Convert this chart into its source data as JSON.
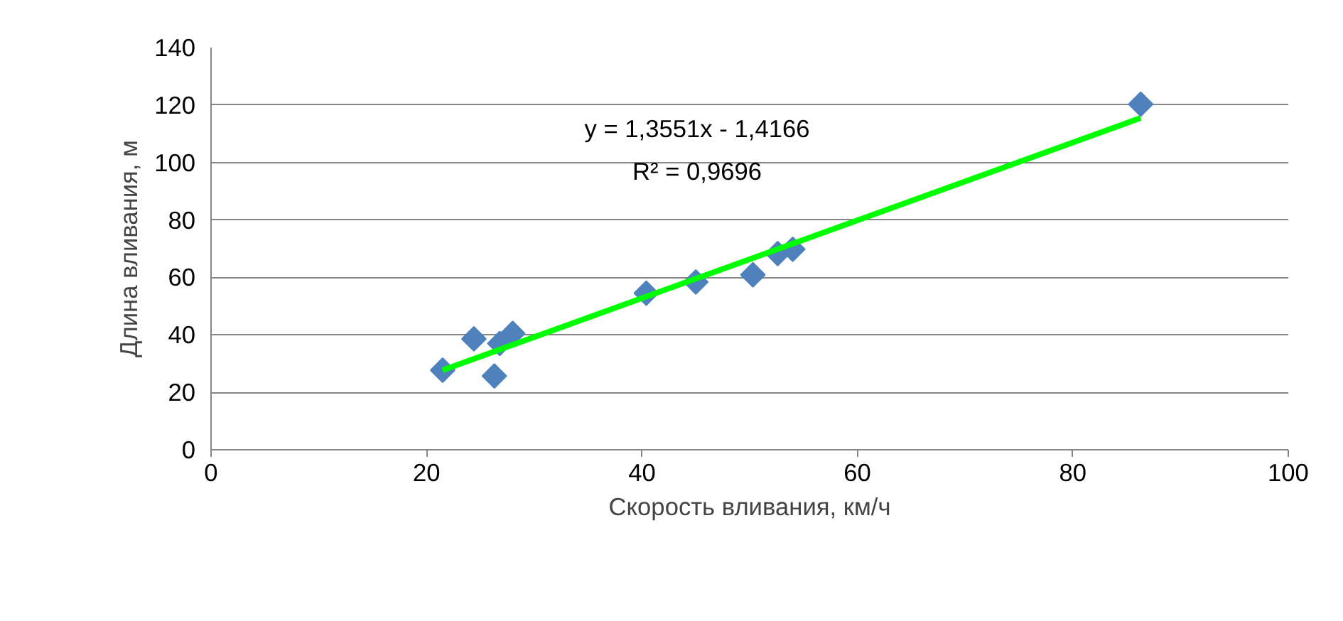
{
  "chart_data": {
    "type": "scatter",
    "xlabel": "Скорость вливания, км/ч",
    "ylabel": "Длина вливания, м",
    "xlim": [
      0,
      100
    ],
    "xticks": [
      0,
      20,
      40,
      60,
      80,
      100
    ],
    "ylim": [
      0,
      140
    ],
    "yticks": [
      0,
      20,
      40,
      60,
      80,
      100,
      120,
      140
    ],
    "grid": "y",
    "marker": "diamond",
    "annotations": [
      "y = 1,3551x - 1,4166",
      "R² = 0,9696"
    ],
    "series": [
      {
        "color": "#4f81bd",
        "x": [
          21.5,
          24.4,
          26.3,
          26.8,
          28.0,
          40.4,
          45.0,
          50.3,
          52.6,
          54.0,
          86.3
        ],
        "values": [
          27.7,
          38.6,
          25.7,
          37.0,
          40.5,
          54.5,
          58.4,
          60.9,
          68.3,
          69.8,
          120.3
        ]
      },
      {
        "type": "line",
        "color": "#00ff00",
        "x": [
          21.5,
          86.3
        ],
        "values": [
          27.7,
          115.5
        ],
        "marker": "none",
        "line_style": "solid"
      }
    ]
  }
}
